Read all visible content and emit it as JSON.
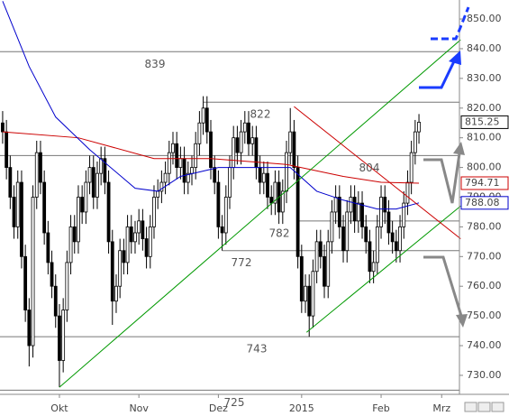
{
  "chart_data": {
    "type": "candlestick",
    "xlim": [
      -0.7,
      120.7
    ],
    "ylim": [
      723.6,
      856.4
    ],
    "xticks": [
      {
        "value": 15,
        "label": "Okt"
      },
      {
        "value": 36,
        "label": "Nov"
      },
      {
        "value": 57,
        "label": "Dez"
      },
      {
        "value": 79,
        "label": "2015"
      },
      {
        "value": 100,
        "label": "Feb"
      },
      {
        "value": 116,
        "label": "Mrz"
      }
    ],
    "yticks": [
      {
        "value": 730,
        "label": "730.00"
      },
      {
        "value": 740,
        "label": "740.00"
      },
      {
        "value": 750,
        "label": "750.00"
      },
      {
        "value": 760,
        "label": "760.00"
      },
      {
        "value": 770,
        "label": "770.00"
      },
      {
        "value": 780,
        "label": "780.00"
      },
      {
        "value": 790,
        "label": "790.00"
      },
      {
        "value": 800,
        "label": "800.00"
      },
      {
        "value": 810,
        "label": "810.00"
      },
      {
        "value": 820,
        "label": "820.00"
      },
      {
        "value": 830,
        "label": "830.00"
      },
      {
        "value": 840,
        "label": "840.00"
      },
      {
        "value": 850,
        "label": "850.00"
      }
    ],
    "open": [
      815,
      812,
      800,
      790,
      780,
      795,
      770,
      752,
      740,
      790,
      805,
      795,
      778,
      768,
      760,
      750,
      735,
      752,
      768,
      780,
      775,
      790,
      785,
      795,
      800,
      790,
      798,
      803,
      795,
      775,
      755,
      760,
      772,
      768,
      780,
      775,
      778,
      782,
      776,
      770,
      780,
      790,
      792,
      795,
      798,
      805,
      808,
      800,
      803,
      795,
      798,
      800,
      808,
      815,
      820,
      812,
      800,
      795,
      780,
      778,
      790,
      800,
      810,
      805,
      812,
      815,
      808,
      810,
      800,
      795,
      798,
      790,
      788,
      795,
      785,
      792,
      805,
      812,
      800,
      770,
      755,
      760,
      750,
      765,
      775,
      770,
      760,
      775,
      785,
      790,
      780,
      772,
      785,
      790,
      782,
      788,
      780,
      775,
      765,
      768,
      780,
      790,
      785,
      778,
      775,
      772,
      780,
      788,
      795,
      805,
      812
    ],
    "high": [
      819,
      816,
      804,
      794,
      799,
      799,
      774,
      756,
      794,
      809,
      809,
      799,
      782,
      772,
      764,
      754,
      756,
      772,
      784,
      784,
      794,
      794,
      799,
      804,
      804,
      802,
      807,
      807,
      799,
      779,
      764,
      776,
      776,
      784,
      784,
      782,
      786,
      786,
      780,
      784,
      794,
      796,
      799,
      802,
      809,
      812,
      812,
      807,
      807,
      802,
      804,
      812,
      819,
      824,
      824,
      816,
      804,
      799,
      784,
      794,
      804,
      814,
      814,
      816,
      819,
      819,
      814,
      814,
      804,
      802,
      802,
      794,
      799,
      799,
      796,
      809,
      820,
      816,
      804,
      774,
      764,
      764,
      769,
      779,
      779,
      774,
      779,
      789,
      794,
      794,
      784,
      789,
      794,
      794,
      792,
      792,
      784,
      779,
      772,
      784,
      794,
      794,
      789,
      782,
      779,
      784,
      792,
      799,
      809,
      816,
      818
    ],
    "low": [
      808,
      796,
      786,
      776,
      776,
      766,
      748,
      733,
      736,
      786,
      791,
      774,
      764,
      756,
      746,
      726,
      731,
      748,
      764,
      771,
      771,
      781,
      781,
      791,
      786,
      786,
      794,
      791,
      771,
      747,
      751,
      756,
      764,
      764,
      771,
      771,
      774,
      772,
      766,
      766,
      776,
      786,
      788,
      791,
      794,
      801,
      796,
      796,
      791,
      791,
      794,
      796,
      804,
      811,
      808,
      796,
      791,
      776,
      772,
      774,
      786,
      796,
      801,
      801,
      808,
      804,
      804,
      796,
      791,
      791,
      786,
      784,
      784,
      781,
      781,
      788,
      801,
      796,
      766,
      751,
      751,
      743,
      746,
      761,
      766,
      756,
      756,
      771,
      781,
      776,
      768,
      768,
      781,
      778,
      778,
      776,
      771,
      761,
      761,
      764,
      776,
      781,
      774,
      771,
      768,
      768,
      776,
      784,
      791,
      801,
      808
    ],
    "close": [
      812,
      800,
      790,
      780,
      795,
      770,
      752,
      740,
      790,
      805,
      795,
      778,
      768,
      760,
      750,
      735,
      752,
      768,
      780,
      775,
      790,
      785,
      795,
      800,
      790,
      798,
      803,
      795,
      775,
      755,
      760,
      772,
      768,
      780,
      775,
      778,
      782,
      776,
      770,
      780,
      790,
      792,
      795,
      798,
      805,
      808,
      800,
      803,
      795,
      798,
      800,
      808,
      815,
      820,
      812,
      800,
      795,
      780,
      778,
      790,
      800,
      810,
      805,
      812,
      815,
      808,
      810,
      800,
      795,
      798,
      790,
      788,
      795,
      785,
      792,
      805,
      812,
      800,
      770,
      755,
      760,
      750,
      765,
      775,
      770,
      760,
      775,
      785,
      790,
      780,
      772,
      785,
      790,
      782,
      788,
      780,
      775,
      765,
      768,
      780,
      790,
      785,
      778,
      775,
      772,
      780,
      788,
      795,
      805,
      812,
      815.25
    ],
    "overlays": [
      {
        "color": "#cc0000",
        "x": [
          0,
          20,
          40,
          55,
          75,
          90,
          100,
          110
        ],
        "values": [
          812,
          810,
          803,
          803,
          801,
          797,
          795,
          794.71
        ]
      },
      {
        "color": "#0000cc",
        "x": [
          0,
          7,
          14,
          23,
          35,
          41,
          47,
          57,
          66,
          76,
          83,
          90,
          99,
          104,
          110
        ],
        "values": [
          856,
          834,
          817,
          806,
          793,
          792,
          797,
          800,
          800,
          800,
          792,
          789,
          786,
          786,
          788.08
        ]
      },
      {
        "color": "#009900",
        "x": [
          15,
          121
        ],
        "values": [
          726,
          843
        ]
      },
      {
        "color": "#009900",
        "x": [
          80.3,
          121
        ],
        "values": [
          744.5,
          787
        ]
      },
      {
        "color": "#cc0000",
        "x": [
          77,
          121
        ],
        "values": [
          820.5,
          776
        ]
      }
    ],
    "levels": [
      {
        "value": 839,
        "start": -0.7
      },
      {
        "value": 822,
        "start": 53
      },
      {
        "value": 804,
        "start": -0.7
      },
      {
        "value": 782,
        "start": 78
      },
      {
        "value": 772,
        "start": 58
      },
      {
        "value": 743,
        "start": -0.7
      },
      {
        "value": 725,
        "start": -0.7
      }
    ],
    "price_labels": [
      {
        "value": 815.25,
        "label": "815.25",
        "color": "#000000"
      },
      {
        "value": 794.71,
        "label": "794.71",
        "color": "#cc0000"
      },
      {
        "value": 788.08,
        "label": "788.08",
        "color": "#0000cc"
      }
    ]
  }
}
